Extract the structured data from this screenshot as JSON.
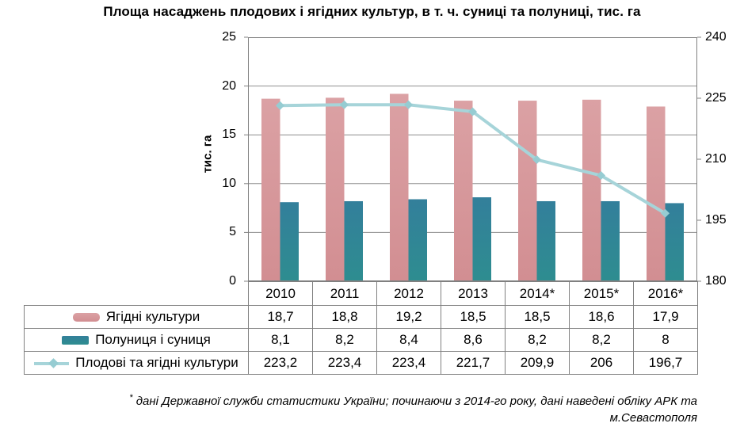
{
  "title": "Площа насаджень плодових і ягідних культур, в т. ч. суниці та полуниці, тис. га",
  "chart_data": {
    "type": "combo_bar_line",
    "categories": [
      "2010",
      "2011",
      "2012",
      "2013",
      "2014*",
      "2015*",
      "2016*"
    ],
    "left_axis": {
      "label": "тис. га",
      "min": 0,
      "max": 25,
      "ticks": [
        0,
        5,
        10,
        15,
        20,
        25
      ]
    },
    "right_axis": {
      "min": 180,
      "max": 240,
      "ticks": [
        180,
        195,
        210,
        225,
        240
      ]
    },
    "grid": "horizontal-major-primary",
    "legend_position": "table-left",
    "series": [
      {
        "name": "Ягідні культури",
        "type": "bar",
        "axis": "left",
        "color": "#DBA1A4",
        "color2": "#D28E92",
        "values": [
          18.7,
          18.8,
          19.2,
          18.5,
          18.5,
          18.6,
          17.9
        ],
        "labels": [
          "18,7",
          "18,8",
          "19,2",
          "18,5",
          "18,5",
          "18,6",
          "17,9"
        ]
      },
      {
        "name": "Полуниця і суниця",
        "type": "bar",
        "axis": "left",
        "color": "#337F9B",
        "color2": "#2E8D90",
        "values": [
          8.1,
          8.2,
          8.4,
          8.6,
          8.2,
          8.2,
          8
        ],
        "labels": [
          "8,1",
          "8,2",
          "8,4",
          "8,6",
          "8,2",
          "8,2",
          "8"
        ]
      },
      {
        "name": "Плодові та ягідні культури",
        "type": "line",
        "axis": "right",
        "color": "#A6D4D9",
        "marker_color": "#96CCD2",
        "values": [
          223.2,
          223.4,
          223.4,
          221.7,
          209.9,
          206,
          196.7
        ],
        "labels": [
          "223,2",
          "223,4",
          "223,4",
          "221,7",
          "209,9",
          "206",
          "196,7"
        ]
      }
    ],
    "colors": {
      "axis_line": "#808080",
      "gridline": "#8E8E8E",
      "table_border": "#808080"
    }
  },
  "footnote": {
    "marker": "*",
    "line1": "дані Державної служби статистики України; починаючи з 2014-го року, дані наведені обліку АРК та",
    "line2": "м.Севастополя"
  }
}
